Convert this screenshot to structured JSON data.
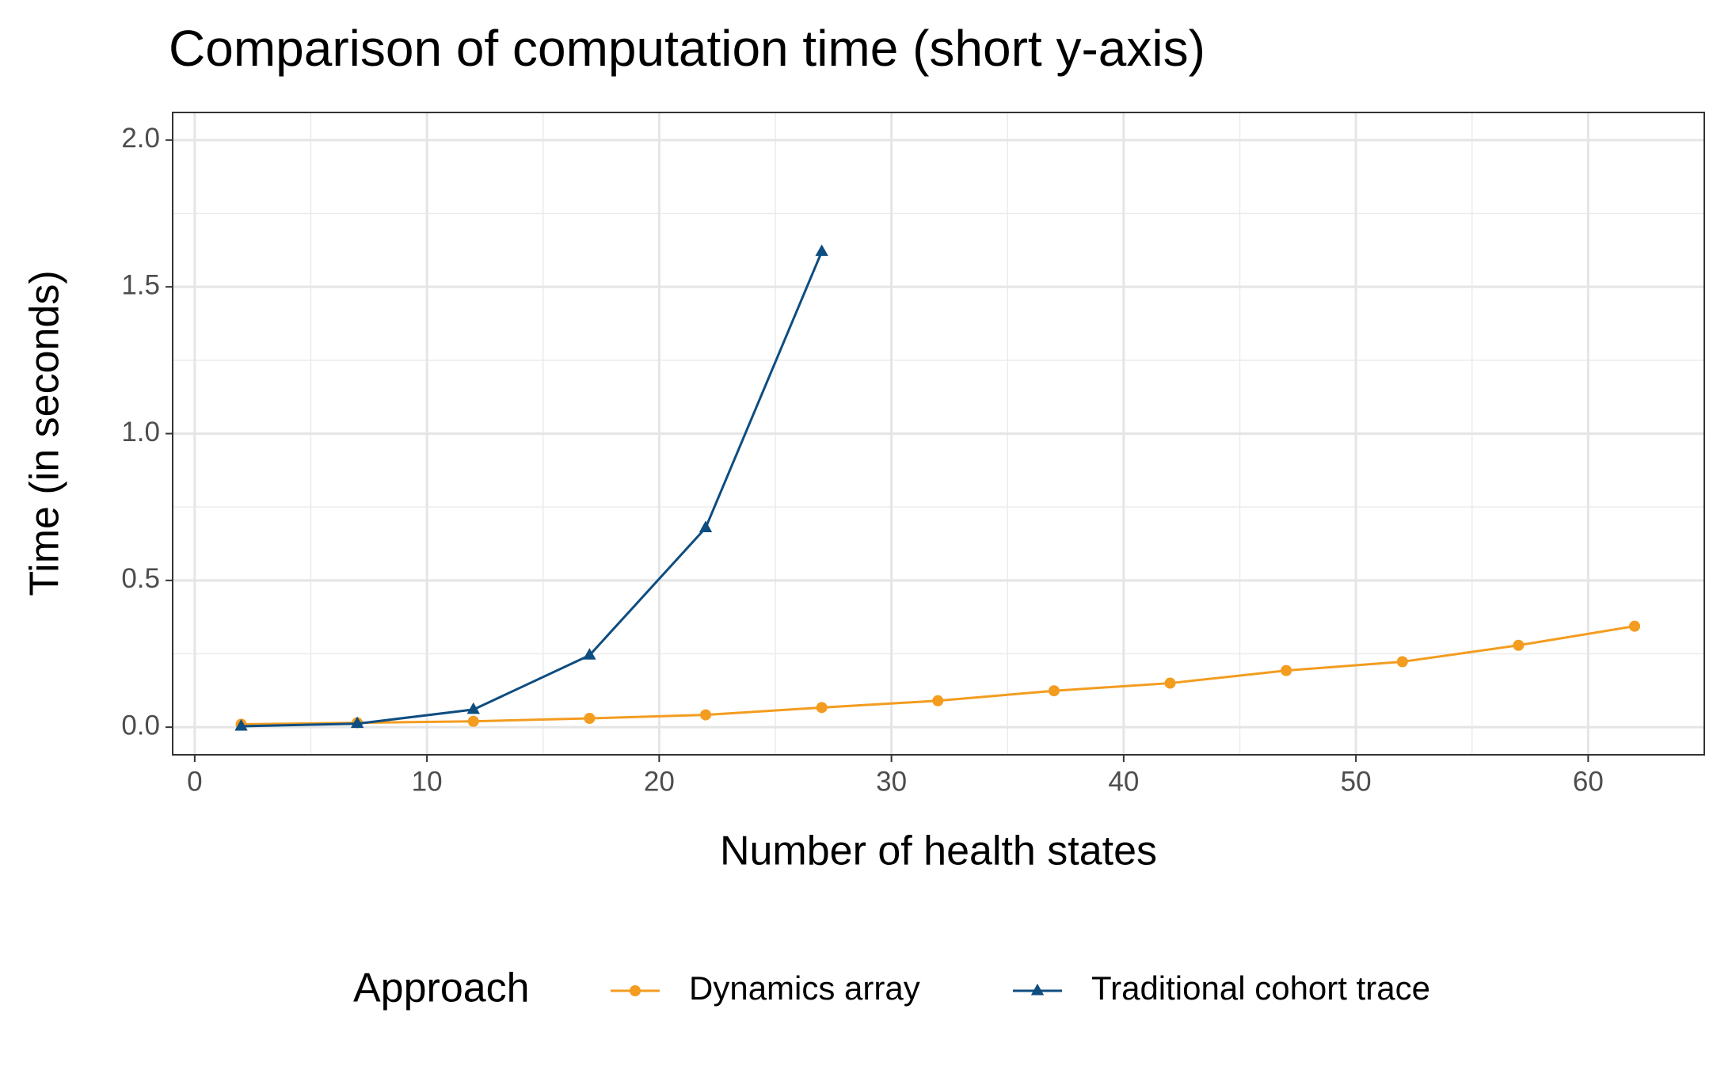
{
  "chart_data": {
    "type": "line",
    "title": "Comparison of computation time (short y-axis)",
    "x_label": "Number of health states",
    "y_label": "Time (in seconds)",
    "legend_title": "Approach",
    "legend": "bottom",
    "grid": true,
    "x": [
      2,
      7,
      12,
      17,
      22,
      27,
      32,
      37,
      42,
      47,
      52,
      57,
      62
    ],
    "series": [
      {
        "name": "Dynamics array",
        "color": "#f39c1f",
        "marker": "circle",
        "values": [
          0.01,
          0.015,
          0.02,
          0.03,
          0.042,
          0.067,
          0.09,
          0.124,
          0.15,
          0.193,
          0.223,
          0.279,
          0.344
        ]
      },
      {
        "name": "Traditional cohort trace",
        "color": "#0e4d80",
        "marker": "triangle",
        "values": [
          0.003,
          0.012,
          0.06,
          0.245,
          0.679,
          1.62,
          null,
          null,
          null,
          null,
          null,
          null,
          null
        ]
      }
    ],
    "xlim": [
      -0.95,
      65
    ],
    "xticks": [
      0,
      10,
      20,
      30,
      40,
      50,
      60
    ],
    "ylim": [
      -0.094,
      2.094
    ],
    "yticks": [
      {
        "value": 0,
        "label": "0.0"
      },
      {
        "value": 0.5,
        "label": "0.5"
      },
      {
        "value": 1,
        "label": "1.0"
      },
      {
        "value": 1.5,
        "label": "1.5"
      },
      {
        "value": 2,
        "label": "2.0"
      }
    ]
  }
}
